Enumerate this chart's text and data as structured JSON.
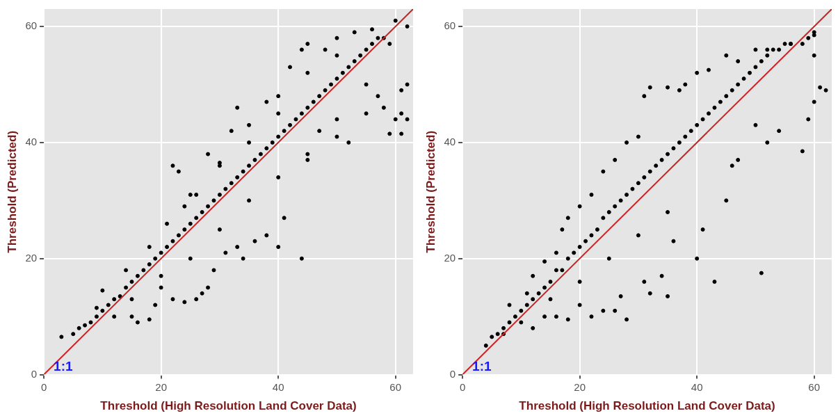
{
  "chart_data": [
    {
      "type": "scatter",
      "xlabel": "Threshold (High Resolution Land Cover Data)",
      "ylabel": "Threshold (Predicted)",
      "xlim": [
        0,
        63
      ],
      "ylim": [
        0,
        63
      ],
      "xticks": [
        0,
        20,
        40,
        60
      ],
      "yticks": [
        0,
        20,
        40,
        60
      ],
      "grid": true,
      "annotations": [
        "1:1"
      ],
      "series": [
        {
          "type": "scatter",
          "marker": "circle",
          "color": "#000000",
          "x": [
            3,
            5,
            6,
            7,
            8,
            9,
            10,
            11,
            12,
            13,
            14,
            15,
            16,
            17,
            18,
            19,
            20,
            21,
            22,
            23,
            24,
            25,
            26,
            27,
            28,
            29,
            30,
            31,
            32,
            33,
            34,
            35,
            36,
            37,
            38,
            39,
            40,
            41,
            42,
            43,
            44,
            45,
            46,
            47,
            48,
            49,
            50,
            51,
            52,
            53,
            54,
            55,
            56,
            57,
            58,
            59,
            9,
            12,
            15,
            16,
            18,
            19,
            20,
            22,
            24,
            26,
            27,
            28,
            29,
            31,
            33,
            34,
            36,
            38,
            40,
            41,
            44,
            45,
            47,
            50,
            52,
            55,
            57,
            58,
            60,
            61,
            62,
            61,
            62,
            59,
            61,
            15,
            20,
            25,
            30,
            35,
            40,
            45,
            50,
            55,
            10,
            14,
            18,
            21,
            22,
            23,
            24,
            26,
            28,
            30,
            32,
            33,
            35,
            38,
            40,
            42,
            44,
            45,
            48,
            50,
            53,
            56,
            60,
            62,
            25,
            30,
            35,
            40,
            45,
            50
          ],
          "values": [
            6.5,
            7,
            8,
            8.5,
            9,
            10,
            11,
            12,
            13,
            13.5,
            15,
            16,
            17,
            18,
            19,
            20,
            21,
            22,
            23,
            24,
            25,
            26,
            27,
            28,
            29,
            30,
            31,
            32,
            33,
            34,
            35,
            36,
            37,
            38,
            39,
            40,
            41,
            42,
            43,
            44,
            45,
            46,
            47,
            48,
            49,
            50,
            51,
            52,
            53,
            54,
            55,
            56,
            57,
            58,
            58,
            57,
            11.5,
            10,
            10,
            9,
            9.5,
            12,
            15,
            13,
            12.5,
            13,
            14,
            15,
            18,
            21,
            22,
            20,
            23,
            24,
            22,
            27,
            20,
            38,
            42,
            41,
            40,
            45,
            48,
            46,
            44,
            45,
            44,
            49,
            50,
            41.5,
            41.5,
            13,
            17,
            20,
            25,
            30,
            34,
            37,
            44,
            50,
            14.5,
            18,
            22,
            26,
            36,
            35,
            29,
            31,
            38,
            36,
            42,
            46,
            43,
            47,
            48,
            53,
            56,
            57,
            56,
            58,
            59,
            59.5,
            61,
            60,
            31,
            36.5,
            40,
            45,
            52,
            55
          ]
        },
        {
          "type": "line",
          "marker": "none",
          "color": "#cc2222",
          "x": [
            0,
            63
          ],
          "values": [
            0,
            63
          ]
        }
      ]
    },
    {
      "type": "scatter",
      "xlabel": "Threshold (High Resolution Land Cover Data)",
      "ylabel": "Threshold (Predicted)",
      "xlim": [
        0,
        63
      ],
      "ylim": [
        0,
        63
      ],
      "xticks": [
        0,
        20,
        40,
        60
      ],
      "yticks": [
        0,
        20,
        40,
        60
      ],
      "grid": true,
      "annotations": [
        "1:1"
      ],
      "series": [
        {
          "type": "scatter",
          "marker": "circle",
          "color": "#000000",
          "x": [
            4,
            5,
            6,
            7,
            8,
            9,
            10,
            11,
            12,
            13,
            14,
            15,
            16,
            17,
            18,
            19,
            20,
            21,
            22,
            23,
            24,
            25,
            26,
            27,
            28,
            29,
            30,
            31,
            32,
            33,
            34,
            35,
            36,
            37,
            38,
            39,
            40,
            41,
            42,
            43,
            44,
            45,
            46,
            47,
            48,
            49,
            50,
            51,
            52,
            53,
            54,
            56,
            58,
            59,
            60,
            7,
            10,
            12,
            14,
            16,
            18,
            20,
            22,
            24,
            26,
            27,
            28,
            31,
            32,
            35,
            34,
            36,
            40,
            41,
            43,
            45,
            47,
            51,
            52,
            54,
            58,
            60,
            61,
            62,
            59,
            50,
            46,
            35,
            30,
            25,
            20,
            15,
            8,
            11,
            12,
            14,
            16,
            18,
            17,
            20,
            22,
            24,
            26,
            28,
            30,
            31,
            32,
            35,
            37,
            38,
            40,
            42,
            45,
            47,
            50,
            52,
            55,
            56,
            60,
            60
          ],
          "values": [
            5,
            6.5,
            7,
            8,
            9,
            10,
            11,
            12,
            13,
            14,
            15,
            16,
            18,
            18,
            20,
            21,
            22,
            23,
            24,
            25,
            27,
            28,
            29,
            30,
            31,
            32,
            33,
            34,
            35,
            36,
            37,
            38,
            39,
            40,
            41,
            42,
            43,
            44,
            45,
            46,
            47,
            48,
            49,
            50,
            51,
            52,
            53,
            54,
            55,
            56,
            56,
            57,
            57,
            58,
            59,
            7,
            9,
            8,
            10,
            10,
            9.5,
            12,
            10,
            11,
            11,
            13.5,
            9.5,
            16,
            14,
            13.5,
            17,
            23,
            20,
            25,
            16,
            30,
            37,
            17.5,
            40,
            42,
            38.5,
            47,
            49.5,
            49,
            44,
            43,
            36,
            28,
            24,
            20,
            16,
            13,
            12,
            14,
            17,
            19.5,
            21,
            27,
            25,
            29,
            31,
            35,
            37,
            40,
            41,
            48,
            49.5,
            49.5,
            49,
            50,
            52,
            52.5,
            55,
            54,
            56,
            56,
            57,
            57,
            58.5,
            55
          ]
        },
        {
          "type": "line",
          "marker": "none",
          "color": "#cc2222",
          "x": [
            0,
            63
          ],
          "values": [
            0,
            63
          ]
        }
      ]
    }
  ]
}
